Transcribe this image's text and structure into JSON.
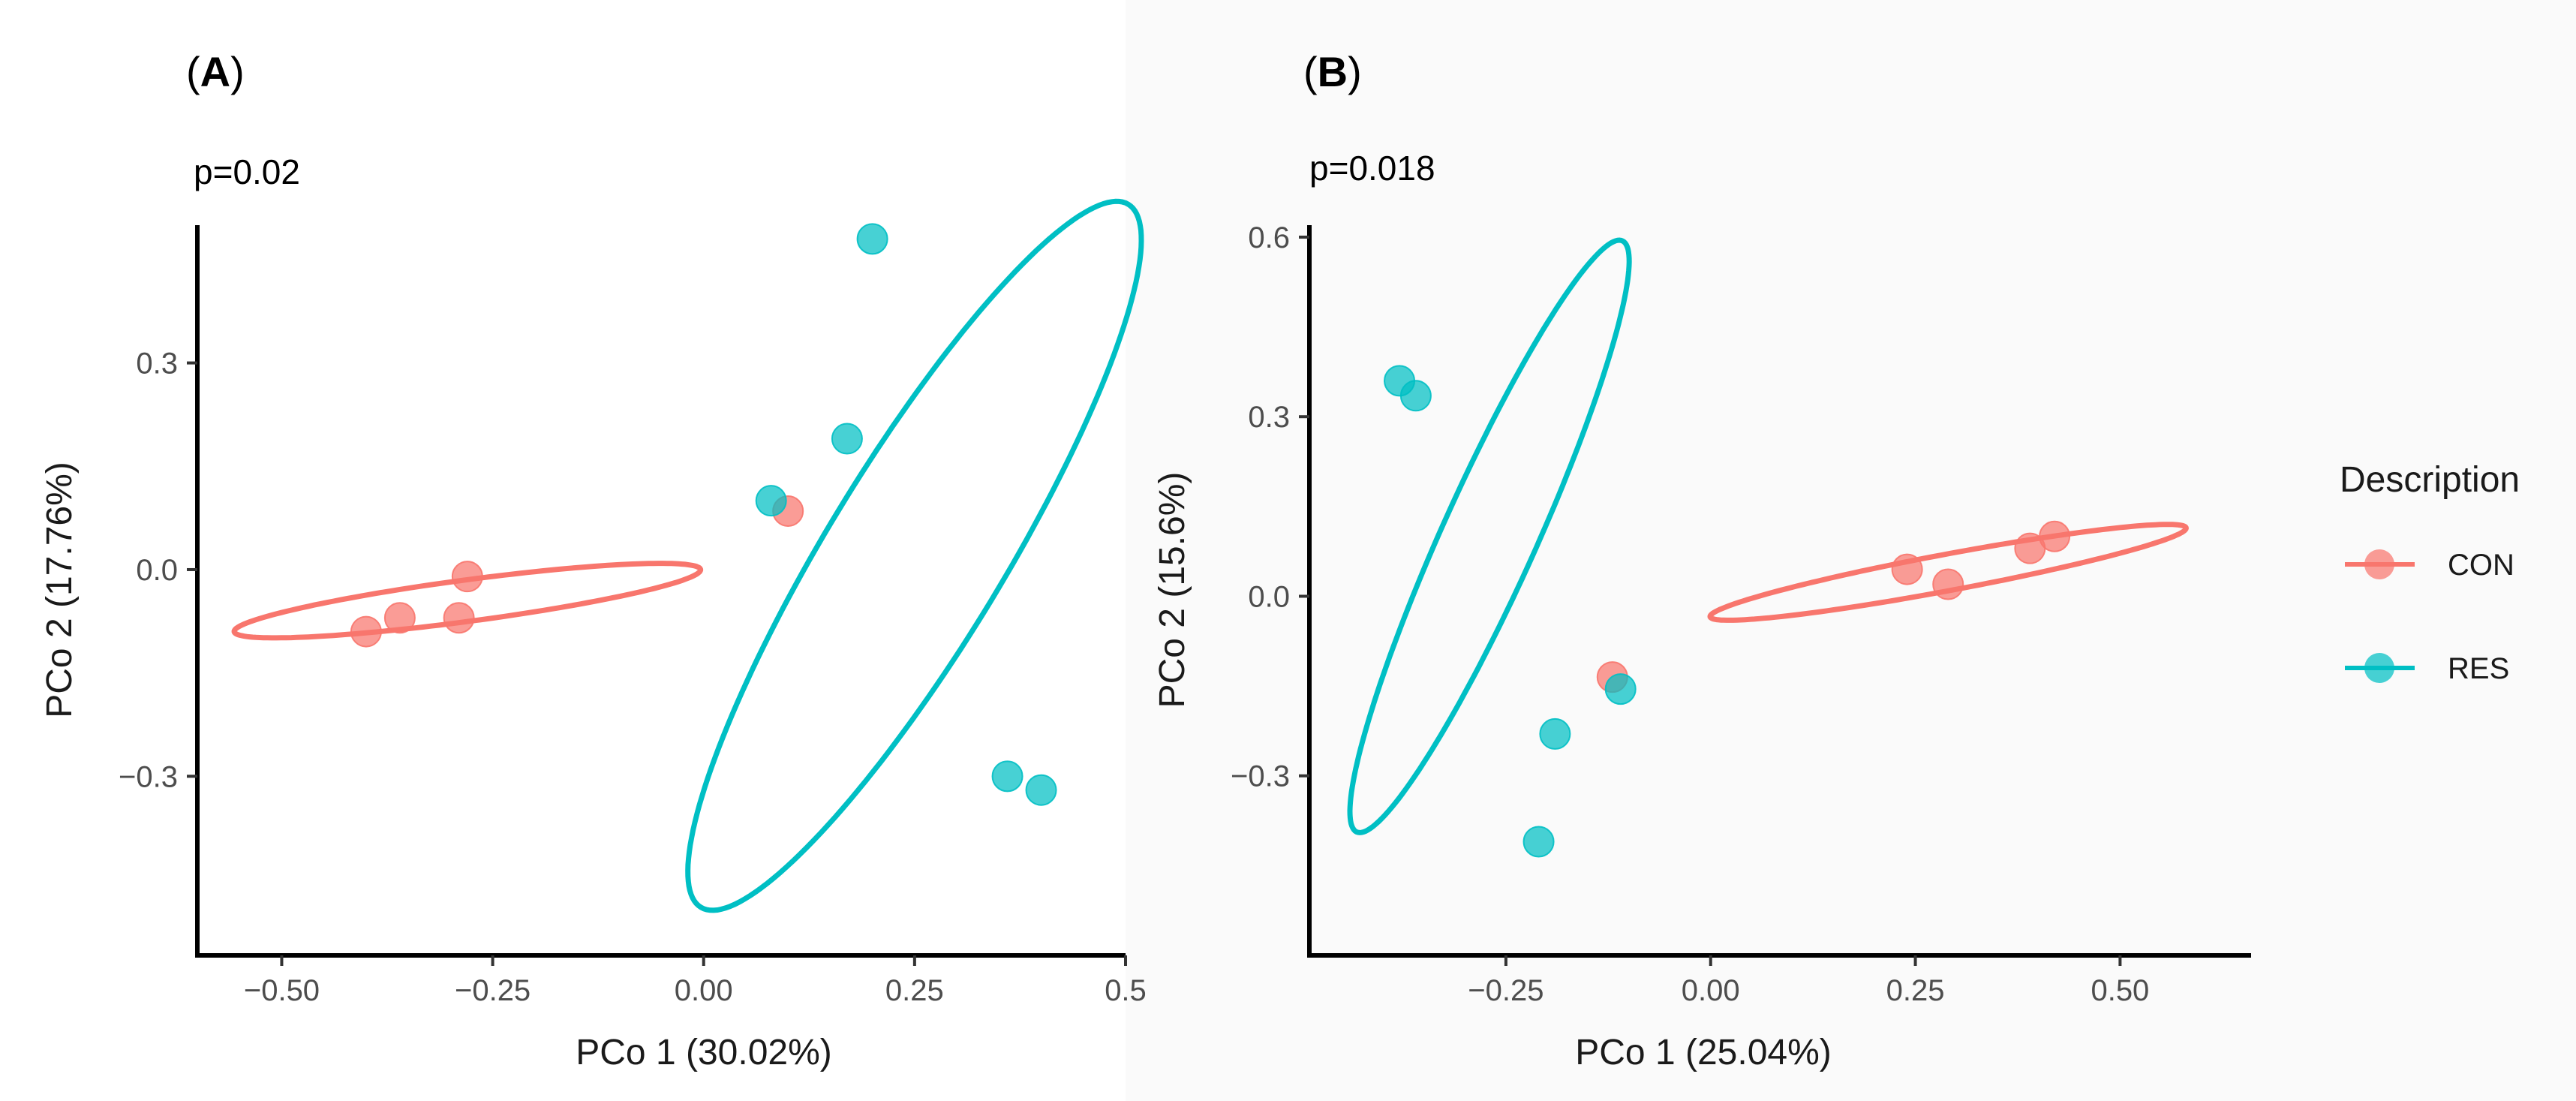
{
  "chart_data": [
    {
      "type": "scatter",
      "panel": "A",
      "panel_label_bold": "A",
      "annotation": "p=0.02",
      "xlabel": "PCo 1 (30.02%)",
      "ylabel": "PCo 2 (17.76%)",
      "xlim": [
        -0.6,
        0.5
      ],
      "ylim": [
        -0.56,
        0.5
      ],
      "xticks": [
        -0.5,
        -0.25,
        0.0,
        0.25,
        0.5
      ],
      "xtick_labels": [
        "−0.50",
        "−0.25",
        "0.00",
        "0.25",
        "0.5"
      ],
      "yticks": [
        -0.3,
        0.0,
        0.3
      ],
      "ytick_labels": [
        "−0.3",
        "0.0",
        "0.3"
      ],
      "series": [
        {
          "name": "CON",
          "points": [
            {
              "x": -0.4,
              "y": -0.09
            },
            {
              "x": -0.36,
              "y": -0.07
            },
            {
              "x": -0.28,
              "y": -0.01
            },
            {
              "x": -0.29,
              "y": -0.07
            },
            {
              "x": 0.1,
              "y": 0.085
            }
          ],
          "ellipse": {
            "cx": -0.28,
            "cy": -0.045,
            "rx": 0.28,
            "ry": 0.03,
            "angle_deg": 9.3
          }
        },
        {
          "name": "RES",
          "points": [
            {
              "x": 0.08,
              "y": 0.1
            },
            {
              "x": 0.17,
              "y": 0.19
            },
            {
              "x": 0.2,
              "y": 0.48
            },
            {
              "x": 0.36,
              "y": -0.3
            },
            {
              "x": 0.4,
              "y": -0.32
            }
          ],
          "ellipse": {
            "cx": 0.25,
            "cy": 0.02,
            "rx": 0.57,
            "ry": 0.11,
            "angle_deg": 64.0
          }
        }
      ]
    },
    {
      "type": "scatter",
      "panel": "B",
      "panel_label_bold": "B",
      "annotation": "p=0.018",
      "xlabel": "PCo 1 (25.04%)",
      "ylabel": "PCo 2 (15.6%)",
      "xlim": [
        -0.49,
        0.66
      ],
      "ylim": [
        -0.6,
        0.62
      ],
      "xticks": [
        -0.25,
        0.0,
        0.25,
        0.5
      ],
      "xtick_labels": [
        "−0.25",
        "0.00",
        "0.25",
        "0.50"
      ],
      "yticks": [
        -0.3,
        0.0,
        0.3,
        0.6
      ],
      "ytick_labels": [
        "−0.3",
        "0.0",
        "0.3",
        "0.6"
      ],
      "series": [
        {
          "name": "CON",
          "points": [
            {
              "x": 0.24,
              "y": 0.045
            },
            {
              "x": 0.29,
              "y": 0.02
            },
            {
              "x": 0.39,
              "y": 0.08
            },
            {
              "x": 0.42,
              "y": 0.1
            },
            {
              "x": -0.12,
              "y": -0.135
            }
          ],
          "ellipse": {
            "cx": 0.29,
            "cy": 0.04,
            "rx": 0.3,
            "ry": 0.03,
            "angle_deg": 14.4
          }
        },
        {
          "name": "RES",
          "points": [
            {
              "x": -0.38,
              "y": 0.36
            },
            {
              "x": -0.36,
              "y": 0.335
            },
            {
              "x": -0.19,
              "y": -0.23
            },
            {
              "x": -0.21,
              "y": -0.41
            },
            {
              "x": -0.11,
              "y": -0.155
            }
          ],
          "ellipse": {
            "cx": -0.27,
            "cy": 0.1,
            "rx": 0.52,
            "ry": 0.06,
            "angle_deg": 72.0
          }
        }
      ]
    }
  ],
  "legend": {
    "title": "Description",
    "items": [
      {
        "label": "CON",
        "color": "#F8766D"
      },
      {
        "label": "RES",
        "color": "#00BFC4"
      }
    ]
  },
  "colors": {
    "CON": "#F8766D",
    "RES": "#00BFC4"
  }
}
